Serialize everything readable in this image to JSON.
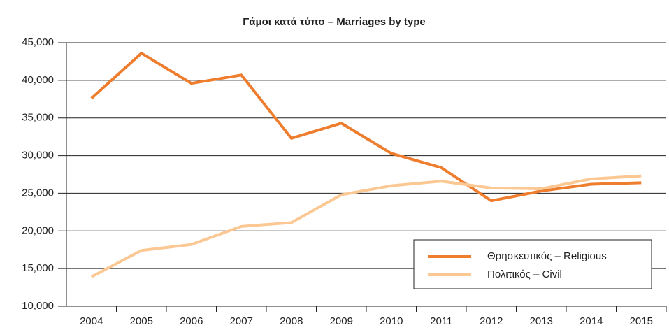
{
  "chart_data": {
    "type": "line",
    "title": "Γάμοι κατά τύπο – Marriages by type",
    "categories": [
      "2004",
      "2005",
      "2006",
      "2007",
      "2008",
      "2009",
      "2010",
      "2011",
      "2012",
      "2013",
      "2014",
      "2015"
    ],
    "series": [
      {
        "name": "Θρησκευτικός – Religious",
        "color": "#ee7d2e",
        "values": [
          37600,
          43600,
          39600,
          40700,
          32300,
          34300,
          30300,
          28400,
          24000,
          25300,
          26200,
          26400
        ]
      },
      {
        "name": "Πολιτικός – Civil",
        "color": "#fbc894",
        "values": [
          13900,
          17400,
          18200,
          20600,
          21100,
          24800,
          26000,
          26600,
          25700,
          25600,
          26900,
          27300
        ]
      }
    ],
    "ylim": [
      10000,
      45000
    ],
    "yticks": [
      {
        "value": 10000,
        "label": "10,000"
      },
      {
        "value": 15000,
        "label": "15,000"
      },
      {
        "value": 20000,
        "label": "20,000"
      },
      {
        "value": 25000,
        "label": "25,000"
      },
      {
        "value": 30000,
        "label": "30,000"
      },
      {
        "value": 35000,
        "label": "35,000"
      },
      {
        "value": 40000,
        "label": "40,000"
      },
      {
        "value": 45000,
        "label": "45,000"
      }
    ],
    "grid": true,
    "legend": "lower right"
  }
}
